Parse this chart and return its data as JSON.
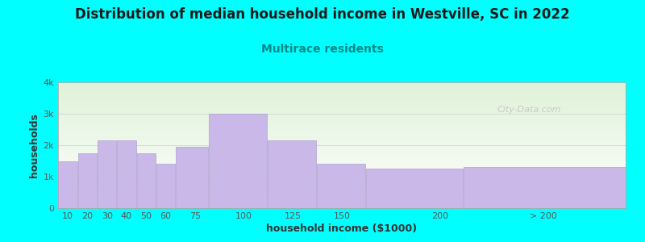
{
  "title": "Distribution of median household income in Westville, SC in 2022",
  "subtitle": "Multirace residents",
  "xlabel": "household income ($1000)",
  "ylabel": "households",
  "background_color": "#00FFFF",
  "plot_bg_top": "#dff2d8",
  "plot_bg_bottom": "#ffffff",
  "bar_color": "#c9b8e8",
  "bar_edge_color": "#b0a0d0",
  "values": [
    1500,
    1750,
    2150,
    2150,
    1750,
    1400,
    1950,
    3000,
    2150,
    1400,
    1250,
    1300
  ],
  "bar_lefts": [
    5,
    15,
    25,
    35,
    45,
    55,
    65,
    82,
    112,
    137,
    162,
    212
  ],
  "bar_rights": [
    15,
    25,
    35,
    45,
    55,
    65,
    82,
    112,
    137,
    162,
    212,
    295
  ],
  "ylim": [
    0,
    4000
  ],
  "yticks": [
    0,
    1000,
    2000,
    3000,
    4000
  ],
  "ytick_labels": [
    "0",
    "1k",
    "2k",
    "3k",
    "4k"
  ],
  "xtick_positions": [
    10,
    20,
    30,
    40,
    50,
    60,
    75,
    100,
    125,
    150,
    200,
    253
  ],
  "xtick_labels": [
    "10",
    "20",
    "30",
    "40",
    "50",
    "60",
    "75",
    "100",
    "125",
    "150",
    "200",
    "> 200"
  ],
  "title_fontsize": 12,
  "subtitle_fontsize": 10,
  "axis_label_fontsize": 9,
  "tick_fontsize": 8,
  "watermark_text": "City-Data.com",
  "xlim_left": 5,
  "xlim_right": 295
}
